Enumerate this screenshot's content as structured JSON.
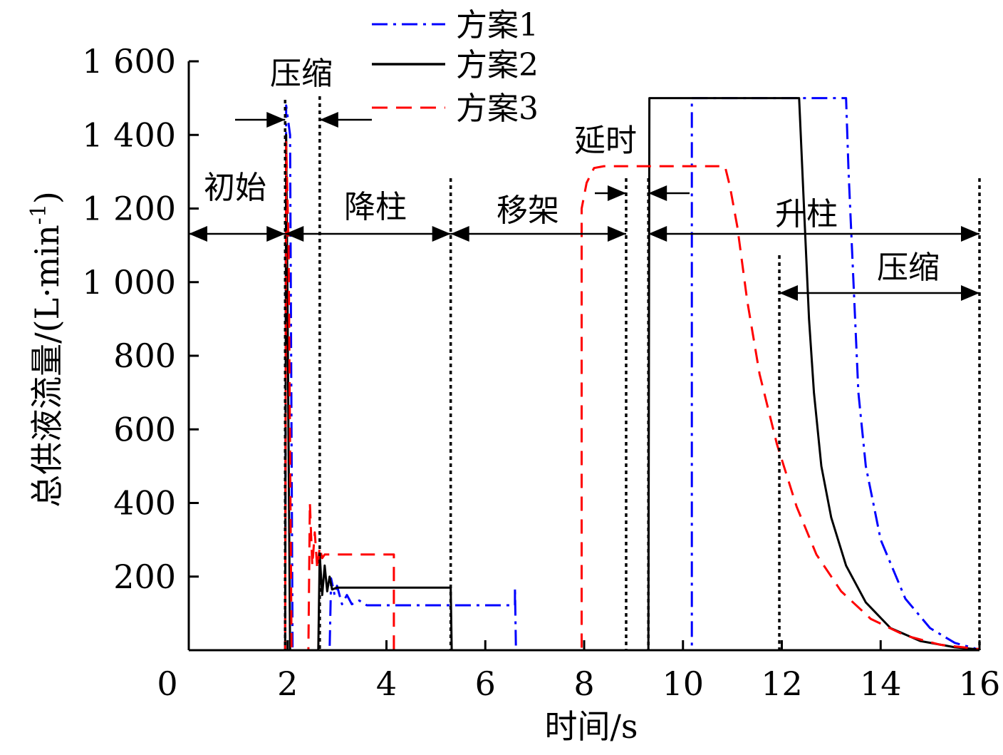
{
  "chart_data": {
    "type": "line",
    "title": "",
    "xlabel": "时间/s",
    "ylabel": "总供液流量/(L·min",
    "ylabel_exp": "-1",
    "ylabel_close": ")",
    "xlim": [
      0,
      16
    ],
    "ylim": [
      0,
      1600
    ],
    "xticks": [
      0,
      2,
      4,
      6,
      8,
      10,
      12,
      14,
      16
    ],
    "yticks": [
      200,
      400,
      600,
      800,
      1000,
      1200,
      1400,
      1600
    ],
    "ytick_labels": [
      "200",
      "400",
      "600",
      "800",
      "1 000",
      "1 200",
      "1 400",
      "1 600"
    ],
    "x_tick_labels": [
      "0",
      "2",
      "4",
      "6",
      "8",
      "10",
      "12",
      "14",
      "16"
    ],
    "legend": [
      "方案1",
      "方案2",
      "方案3"
    ],
    "phase_boundaries": [
      1.95,
      2.65,
      5.3,
      8.85,
      9.3,
      11.95,
      16
    ],
    "annotations": {
      "initial": "初始",
      "compress1": "压缩",
      "lower": "降柱",
      "move": "移架",
      "delay": "延时",
      "raise": "升柱",
      "compress2": "压缩"
    },
    "series": [
      {
        "name": "方案1",
        "color": "#0000ff",
        "style": "dashdot",
        "points": [
          [
            0,
            0
          ],
          [
            1.95,
            0
          ],
          [
            1.97,
            1480
          ],
          [
            2.05,
            1400
          ],
          [
            2.1,
            0
          ],
          [
            2.85,
            0
          ],
          [
            2.88,
            195
          ],
          [
            2.95,
            150
          ],
          [
            3.0,
            175
          ],
          [
            3.1,
            125
          ],
          [
            3.2,
            150
          ],
          [
            3.3,
            125
          ],
          [
            3.45,
            135
          ],
          [
            3.6,
            122
          ],
          [
            6.6,
            122
          ],
          [
            6.6,
            170
          ],
          [
            6.62,
            0
          ],
          [
            9.3,
            0
          ],
          [
            10.18,
            0
          ],
          [
            10.18,
            1500
          ],
          [
            13.3,
            1500
          ],
          [
            13.35,
            1300
          ],
          [
            13.45,
            1000
          ],
          [
            13.55,
            700
          ],
          [
            13.7,
            500
          ],
          [
            14.0,
            300
          ],
          [
            14.5,
            140
          ],
          [
            15.0,
            60
          ],
          [
            15.5,
            20
          ],
          [
            15.9,
            5
          ],
          [
            16,
            0
          ]
        ]
      },
      {
        "name": "方案2",
        "color": "#000000",
        "style": "solid",
        "points": [
          [
            0,
            0
          ],
          [
            1.95,
            0
          ],
          [
            1.97,
            1400
          ],
          [
            2.0,
            900
          ],
          [
            2.05,
            0
          ],
          [
            2.62,
            0
          ],
          [
            2.65,
            260
          ],
          [
            2.7,
            150
          ],
          [
            2.75,
            230
          ],
          [
            2.8,
            160
          ],
          [
            2.85,
            200
          ],
          [
            2.9,
            165
          ],
          [
            3.0,
            170
          ],
          [
            5.3,
            170
          ],
          [
            5.32,
            0
          ],
          [
            9.3,
            0
          ],
          [
            9.32,
            1500
          ],
          [
            12.35,
            1500
          ],
          [
            12.45,
            1200
          ],
          [
            12.55,
            900
          ],
          [
            12.65,
            700
          ],
          [
            12.8,
            500
          ],
          [
            13.0,
            360
          ],
          [
            13.3,
            230
          ],
          [
            13.7,
            130
          ],
          [
            14.2,
            60
          ],
          [
            14.8,
            25
          ],
          [
            15.5,
            8
          ],
          [
            16,
            2
          ]
        ]
      },
      {
        "name": "方案3",
        "color": "#ff0000",
        "style": "dashed",
        "points": [
          [
            0,
            0
          ],
          [
            1.95,
            0
          ],
          [
            1.97,
            1380
          ],
          [
            2.02,
            1100
          ],
          [
            2.08,
            0
          ],
          [
            2.42,
            0
          ],
          [
            2.45,
            400
          ],
          [
            2.5,
            230
          ],
          [
            2.55,
            320
          ],
          [
            2.6,
            220
          ],
          [
            2.65,
            280
          ],
          [
            2.7,
            250
          ],
          [
            2.75,
            260
          ],
          [
            4.15,
            260
          ],
          [
            4.15,
            0
          ],
          [
            7.95,
            0
          ],
          [
            7.95,
            1200
          ],
          [
            8.05,
            1270
          ],
          [
            8.2,
            1310
          ],
          [
            8.4,
            1315
          ],
          [
            10.85,
            1315
          ],
          [
            10.95,
            1260
          ],
          [
            11.1,
            1150
          ],
          [
            11.3,
            950
          ],
          [
            11.55,
            750
          ],
          [
            11.9,
            560
          ],
          [
            12.3,
            390
          ],
          [
            12.7,
            260
          ],
          [
            13.2,
            160
          ],
          [
            13.8,
            85
          ],
          [
            14.5,
            40
          ],
          [
            15.2,
            15
          ],
          [
            16,
            3
          ]
        ]
      }
    ]
  }
}
